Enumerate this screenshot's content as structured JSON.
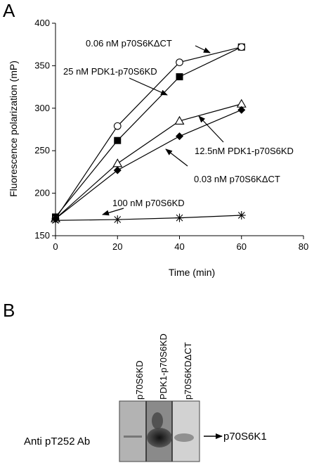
{
  "panel_a_label": "A",
  "panel_b_label": "B",
  "chart_data": {
    "type": "line",
    "xlabel": "Time (min)",
    "ylabel": "Fluorescence polarization (mP)",
    "xlim": [
      0,
      80
    ],
    "ylim": [
      150,
      400
    ],
    "xticks": [
      0,
      20,
      40,
      60,
      80
    ],
    "yticks": [
      150,
      200,
      250,
      300,
      350,
      400
    ],
    "grid": false,
    "series": [
      {
        "name": "0.06 nM p70S6KΔCT",
        "marker": "filled-square",
        "x": [
          0,
          20,
          40,
          60
        ],
        "y": [
          172,
          262,
          337,
          372
        ]
      },
      {
        "name": "25 nM PDK1-p70S6KD",
        "marker": "open-circle",
        "x": [
          0,
          20,
          40,
          60
        ],
        "y": [
          170,
          279,
          354,
          372
        ]
      },
      {
        "name": "12.5nM PDK1-p70S6KD",
        "marker": "open-triangle",
        "x": [
          0,
          20,
          40,
          60
        ],
        "y": [
          170,
          235,
          285,
          305
        ]
      },
      {
        "name": "0.03 nM p70S6KΔCT",
        "marker": "filled-diamond",
        "x": [
          0,
          20,
          40,
          60
        ],
        "y": [
          170,
          227,
          267,
          298
        ]
      },
      {
        "name": "100 nM p70S6KD",
        "marker": "asterisk",
        "x": [
          0,
          20,
          40,
          60
        ],
        "y": [
          168,
          169,
          171,
          174
        ]
      }
    ],
    "annotations": [
      "0.06 nM p70S6KΔCT",
      "25 nM PDK1-p70S6KD",
      "12.5nM PDK1-p70S6KD",
      "0.03 nM p70S6KΔCT",
      "100 nM p70S6KD"
    ]
  },
  "blot": {
    "lanes": [
      "p70S6KD",
      "PDK1-p70S6KD",
      "p70S6KDΔCT"
    ],
    "row_label": "Anti pT252 Ab",
    "band_label": "p70S6K1"
  }
}
